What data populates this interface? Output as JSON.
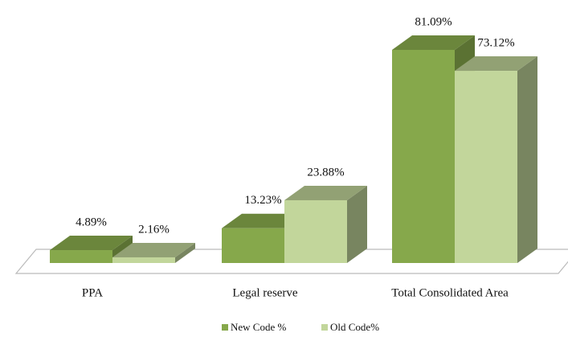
{
  "chart_data": {
    "type": "bar",
    "categories": [
      "PPA",
      "Legal reserve",
      "Total Consolidated Area"
    ],
    "series": [
      {
        "name": "New Code %",
        "color": "#86a84b",
        "values": [
          4.89,
          13.23,
          81.09
        ],
        "value_labels": [
          "4.89%",
          "13.23%",
          "81.09%"
        ]
      },
      {
        "name": "Old Code%",
        "color": "#c2d69b",
        "values": [
          2.16,
          23.88,
          73.12
        ],
        "value_labels": [
          "2.16%",
          "23.88%",
          "73.12%"
        ]
      }
    ],
    "legend": "bottom"
  }
}
